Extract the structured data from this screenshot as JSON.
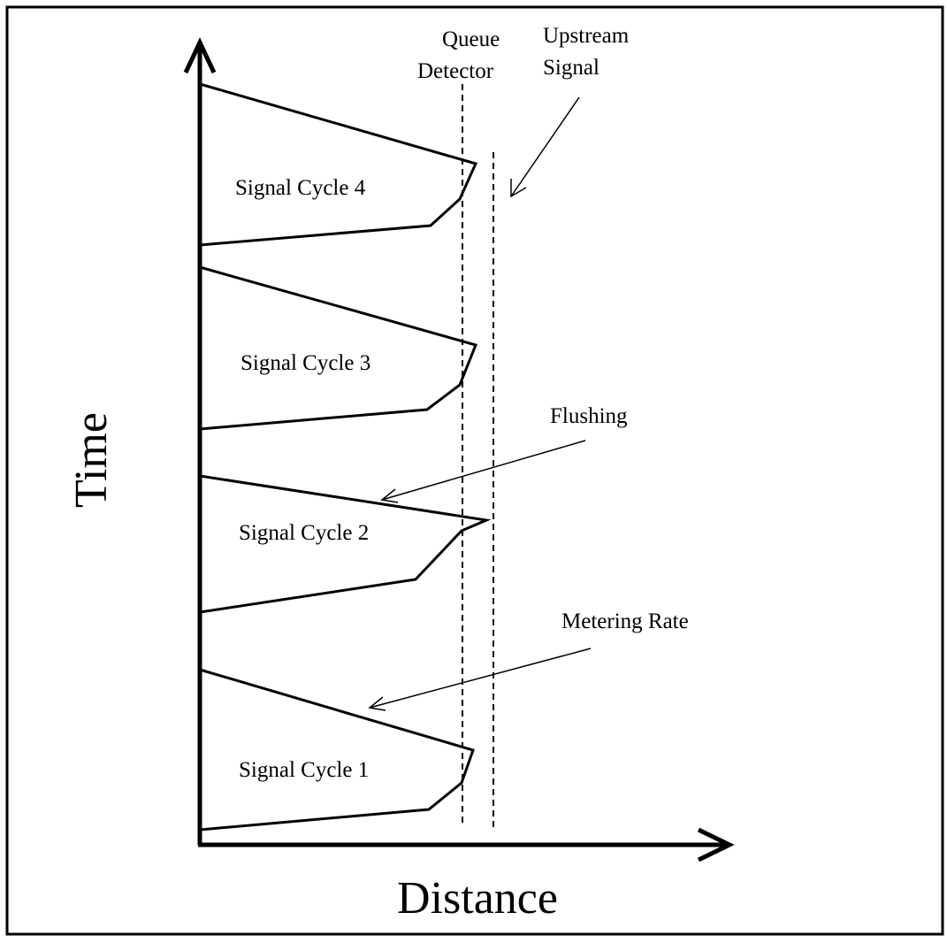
{
  "axes": {
    "y_label": "Time",
    "x_label": "Distance"
  },
  "annotations": {
    "queue_detector": [
      "Queue",
      "Detector"
    ],
    "upstream_signal": [
      "Upstream",
      "Signal"
    ],
    "flushing": "Flushing",
    "metering_rate": "Metering Rate"
  },
  "cycles": [
    "Signal Cycle 1",
    "Signal Cycle 2",
    "Signal Cycle 3",
    "Signal Cycle 4"
  ]
}
